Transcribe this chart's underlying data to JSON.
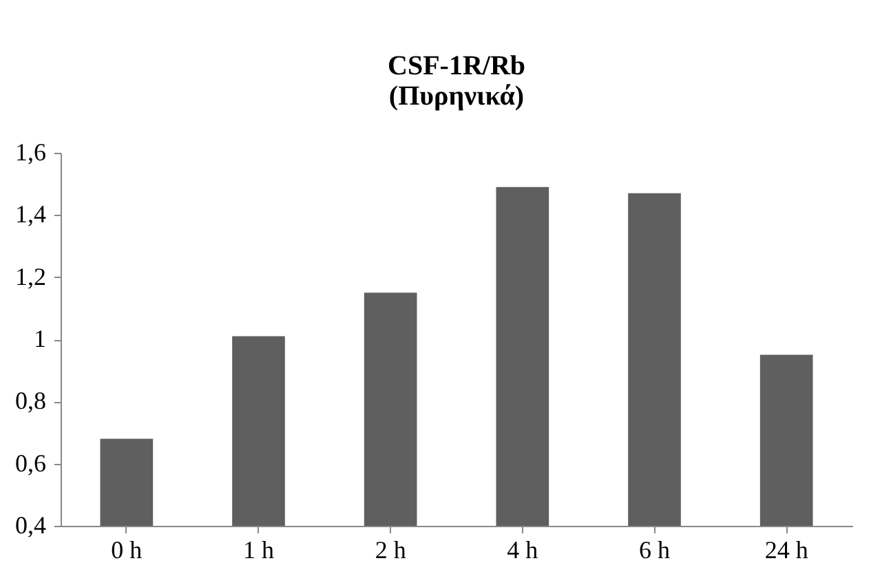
{
  "chart_data": {
    "type": "bar",
    "title": "CSF-1R/Rb",
    "subtitle": "(Πυρηνικά)",
    "categories": [
      "0 h",
      "1 h",
      "2 h",
      "4 h",
      "6 h",
      "24 h"
    ],
    "values": [
      0.68,
      1.01,
      1.15,
      1.49,
      1.47,
      0.95
    ],
    "color": "#5f5f5f",
    "ylim": [
      0.4,
      1.6
    ],
    "yticks": [
      {
        "value": 0.4,
        "label": "0,4"
      },
      {
        "value": 0.6,
        "label": "0,6"
      },
      {
        "value": 0.8,
        "label": "0,8"
      },
      {
        "value": 1,
        "label": "1"
      },
      {
        "value": 1.2,
        "label": "1,2"
      },
      {
        "value": 1.4,
        "label": "1,4"
      },
      {
        "value": 1.6,
        "label": "1,6"
      }
    ],
    "grid": false
  }
}
